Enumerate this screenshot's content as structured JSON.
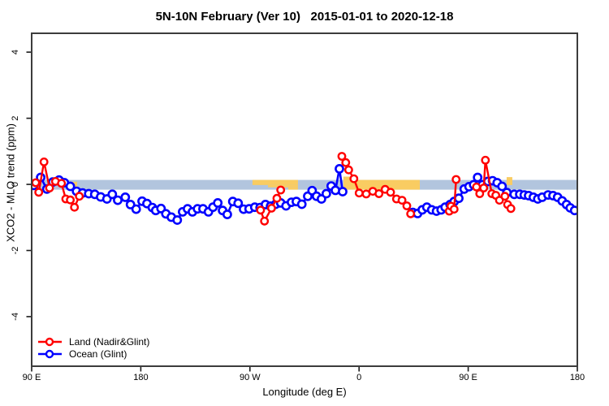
{
  "title": "5N-10N February (Ver 10)   2015-01-01 to 2020-12-18",
  "axes": {
    "x": {
      "label": "Longitude (deg E)",
      "range": [
        90,
        540
      ],
      "ticks": [
        {
          "v": 90,
          "label": "90 E"
        },
        {
          "v": 180,
          "label": "180"
        },
        {
          "v": 270,
          "label": "90 W"
        },
        {
          "v": 360,
          "label": "0"
        },
        {
          "v": 450,
          "label": "90 E"
        },
        {
          "v": 540,
          "label": "180"
        }
      ]
    },
    "y": {
      "label": "XCO2 - MLO trend (ppm)",
      "range": [
        -5.5,
        4.57
      ],
      "ticks": [
        {
          "v": -4,
          "label": "-4"
        },
        {
          "v": -2,
          "label": "-2"
        },
        {
          "v": 0,
          "label": "0"
        },
        {
          "v": 2,
          "label": "2"
        },
        {
          "v": 4,
          "label": "4"
        }
      ]
    }
  },
  "legend": [
    {
      "label": "Land (Nadir&Glint)",
      "color": "#ff0000"
    },
    {
      "label": "Ocean (Glint)",
      "color": "#0000ff"
    }
  ],
  "colors": {
    "land": "#ff0000",
    "ocean": "#0000ff",
    "ocean_band": "#b2c5de",
    "land_band": "#f9cc62",
    "axis": "#3c3c3c",
    "tick": "#1a1a1a"
  },
  "bands": {
    "ocean_strip": {
      "x": [
        90,
        540
      ],
      "y": [
        0.135,
        -0.16
      ]
    },
    "land_strips": [
      {
        "x": [
          122.3,
          127.5
        ],
        "y": [
          0.08,
          -0.12
        ]
      },
      {
        "x": [
          272.1,
          309.6
        ],
        "y": [
          0.135,
          -0.02
        ]
      },
      {
        "x": [
          284.9,
          309.6
        ],
        "y": [
          -0.02,
          -0.09
        ]
      },
      {
        "x": [
          301.6,
          309.6
        ],
        "y": [
          -0.09,
          -0.16
        ]
      },
      {
        "x": [
          347.1,
          410.1
        ],
        "y": [
          0.135,
          -0.16
        ]
      },
      {
        "x": [
          347.1,
          359.2
        ],
        "y": [
          0.235,
          0.135
        ]
      },
      {
        "x": [
          481.7,
          486.4
        ],
        "y": [
          0.22,
          -0.02
        ]
      }
    ]
  },
  "chart_data": {
    "type": "line",
    "x_unit": "Longitude deg E, wrapped from 90E eastward to 180 (90..540)",
    "marker": "open-circle",
    "series": [
      {
        "name": "Land (Nadir&Glint)",
        "color": "#ff0000",
        "segments": [
          [
            [
              93.3,
              0.05
            ],
            [
              95.8,
              -0.24
            ],
            [
              100.2,
              0.68
            ],
            [
              104.7,
              -0.11
            ],
            [
              109.6,
              0.09
            ],
            [
              114.6,
              0.03
            ],
            [
              118.1,
              -0.44
            ],
            [
              121.9,
              -0.47
            ],
            [
              125.3,
              -0.69
            ],
            [
              129.3,
              -0.36
            ]
          ],
          [
            [
              278.8,
              -0.78
            ],
            [
              282.0,
              -1.11
            ],
            [
              287.8,
              -0.72
            ],
            [
              292.2,
              -0.42
            ],
            [
              295.4,
              -0.17
            ]
          ],
          [
            [
              345.8,
              0.85
            ],
            [
              349.0,
              0.66
            ],
            [
              351.4,
              0.44
            ],
            [
              355.7,
              0.17
            ],
            [
              360.1,
              -0.26
            ],
            [
              365.9,
              -0.29
            ],
            [
              371.3,
              -0.21
            ],
            [
              376.4,
              -0.28
            ],
            [
              381.5,
              -0.15
            ],
            [
              386.0,
              -0.24
            ],
            [
              390.9,
              -0.44
            ],
            [
              395.4,
              -0.48
            ],
            [
              399.4,
              -0.65
            ],
            [
              402.5,
              -0.89
            ]
          ],
          [
            [
              434.4,
              -0.81
            ],
            [
              435.8,
              -0.66
            ],
            [
              438.4,
              -0.75
            ],
            [
              440.0,
              0.15
            ]
          ],
          [
            [
              456.8,
              -0.08
            ],
            [
              459.5,
              -0.28
            ],
            [
              462.8,
              -0.11
            ],
            [
              464.2,
              0.73
            ],
            [
              469.5,
              -0.28
            ],
            [
              472.8,
              -0.33
            ],
            [
              475.8,
              -0.48
            ],
            [
              480.3,
              -0.36
            ],
            [
              482.5,
              -0.61
            ],
            [
              485.2,
              -0.73
            ]
          ]
        ]
      },
      {
        "name": "Ocean (Glint)",
        "color": "#0000ff",
        "segments": [
          [
            [
              91.8,
              -0.03
            ],
            [
              97.4,
              0.21
            ],
            [
              102.5,
              -0.14
            ],
            [
              107.4,
              0.07
            ],
            [
              112.6,
              0.13
            ],
            [
              117.0,
              0.05
            ],
            [
              121.9,
              -0.06
            ],
            [
              127.0,
              -0.21
            ],
            [
              132.0,
              -0.26
            ],
            [
              137.1,
              -0.28
            ],
            [
              142.0,
              -0.3
            ],
            [
              146.9,
              -0.38
            ],
            [
              152.1,
              -0.44
            ],
            [
              156.5,
              -0.3
            ],
            [
              161.0,
              -0.48
            ],
            [
              167.2,
              -0.39
            ],
            [
              171.5,
              -0.61
            ],
            [
              176.2,
              -0.75
            ],
            [
              181.1,
              -0.51
            ],
            [
              185.1,
              -0.58
            ],
            [
              189.5,
              -0.7
            ],
            [
              192.3,
              -0.79
            ],
            [
              196.7,
              -0.73
            ],
            [
              200.7,
              -0.89
            ],
            [
              205.2,
              -0.99
            ],
            [
              210.1,
              -1.08
            ],
            [
              214.5,
              -0.83
            ],
            [
              218.6,
              -0.74
            ],
            [
              222.6,
              -0.83
            ],
            [
              226.8,
              -0.74
            ],
            [
              231.3,
              -0.74
            ],
            [
              235.8,
              -0.83
            ],
            [
              239.5,
              -0.69
            ],
            [
              243.5,
              -0.56
            ],
            [
              247.4,
              -0.79
            ],
            [
              251.3,
              -0.91
            ],
            [
              255.9,
              -0.52
            ],
            [
              260.3,
              -0.57
            ],
            [
              264.8,
              -0.75
            ],
            [
              269.3,
              -0.74
            ],
            [
              274.0,
              -0.69
            ],
            [
              278.4,
              -0.7
            ],
            [
              282.8,
              -0.61
            ],
            [
              287.0,
              -0.66
            ],
            [
              291.2,
              -0.6
            ],
            [
              295.4,
              -0.56
            ],
            [
              299.8,
              -0.65
            ],
            [
              304.3,
              -0.54
            ],
            [
              308.3,
              -0.52
            ],
            [
              312.8,
              -0.6
            ],
            [
              317.7,
              -0.36
            ],
            [
              321.3,
              -0.19
            ],
            [
              325.0,
              -0.36
            ],
            [
              329.0,
              -0.44
            ],
            [
              333.0,
              -0.28
            ],
            [
              337.0,
              -0.05
            ],
            [
              340.5,
              -0.18
            ],
            [
              343.8,
              0.47
            ],
            [
              346.5,
              -0.22
            ]
          ],
          [
            [
              404.3,
              -0.85
            ],
            [
              408.3,
              -0.88
            ],
            [
              412.1,
              -0.77
            ],
            [
              415.9,
              -0.69
            ],
            [
              419.9,
              -0.77
            ],
            [
              423.9,
              -0.81
            ],
            [
              427.7,
              -0.77
            ],
            [
              431.0,
              -0.69
            ],
            [
              435.1,
              -0.61
            ],
            [
              438.4,
              -0.52
            ],
            [
              442.2,
              -0.42
            ],
            [
              446.7,
              -0.14
            ],
            [
              450.7,
              -0.07
            ],
            [
              454.5,
              -0.01
            ],
            [
              457.8,
              0.21
            ],
            [
              461.8,
              -0.01
            ],
            [
              466.3,
              0.09
            ],
            [
              470.1,
              0.11
            ],
            [
              473.9,
              0.05
            ],
            [
              477.9,
              -0.06
            ],
            [
              481.9,
              -0.25
            ],
            [
              488.0,
              -0.3
            ],
            [
              492.5,
              -0.3
            ],
            [
              496.3,
              -0.32
            ],
            [
              499.8,
              -0.34
            ],
            [
              503.7,
              -0.39
            ],
            [
              507.4,
              -0.44
            ],
            [
              511.0,
              -0.39
            ],
            [
              515.9,
              -0.32
            ],
            [
              519.9,
              -0.34
            ],
            [
              523.7,
              -0.39
            ],
            [
              527.5,
              -0.5
            ],
            [
              531.1,
              -0.61
            ],
            [
              534.2,
              -0.71
            ],
            [
              537.8,
              -0.79
            ]
          ]
        ]
      }
    ]
  }
}
